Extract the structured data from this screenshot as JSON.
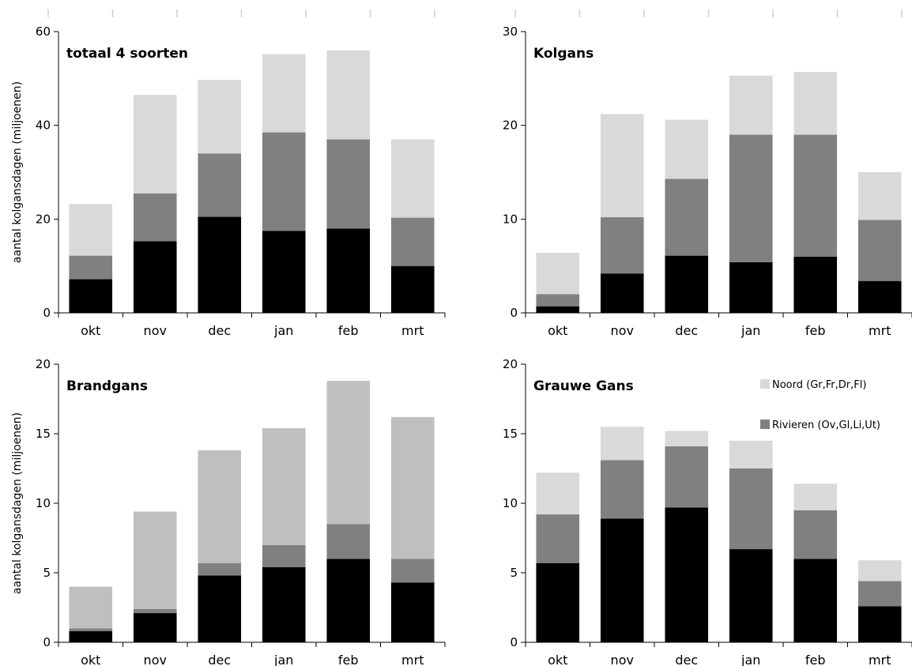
{
  "colors": {
    "Zuid": "#000000",
    "Rivieren": "#808080",
    "Noord": "#d9d9d9",
    "brand_top": "#bfbfbf",
    "axis": "#000000"
  },
  "legend": {
    "noord": "Noord (Gr,Fr,Dr,Fl)",
    "rivieren": "Rivieren (Ov,Gl,Li,Ut)"
  },
  "chart_data": [
    {
      "type": "bar",
      "stacked": true,
      "title": "totaal 4 soorten",
      "ylabel": "aantal kolgansdagen (miljoenen)",
      "categories": [
        "okt",
        "nov",
        "dec",
        "jan",
        "feb",
        "mrt"
      ],
      "ylim": [
        0,
        60
      ],
      "yticks": [
        0,
        20,
        40,
        60
      ],
      "series": [
        {
          "key": "Zuid",
          "values": [
            7.2,
            15.3,
            20.5,
            17.5,
            18.0,
            10.0
          ]
        },
        {
          "key": "Rivieren",
          "values": [
            5.0,
            10.2,
            13.5,
            21.0,
            19.0,
            10.3
          ]
        },
        {
          "key": "Noord",
          "values": [
            11.0,
            21.0,
            15.7,
            16.7,
            19.0,
            16.7
          ]
        }
      ]
    },
    {
      "type": "bar",
      "stacked": true,
      "title": "Kolgans",
      "ylabel": "",
      "categories": [
        "okt",
        "nov",
        "dec",
        "jan",
        "feb",
        "mrt"
      ],
      "ylim": [
        0,
        30
      ],
      "yticks": [
        0,
        10,
        20,
        30
      ],
      "series": [
        {
          "key": "Zuid",
          "values": [
            0.7,
            4.2,
            6.1,
            5.4,
            6.0,
            3.4
          ]
        },
        {
          "key": "Rivieren",
          "values": [
            1.3,
            6.0,
            8.2,
            13.6,
            13.0,
            6.5
          ]
        },
        {
          "key": "Noord",
          "values": [
            4.4,
            11.0,
            6.3,
            6.3,
            6.7,
            5.1
          ]
        }
      ]
    },
    {
      "type": "bar",
      "stacked": true,
      "title": "Brandgans",
      "ylabel": "aantal kolgansdagen (miljoenen)",
      "categories": [
        "okt",
        "nov",
        "dec",
        "jan",
        "feb",
        "mrt"
      ],
      "ylim": [
        0,
        20
      ],
      "yticks": [
        0,
        5,
        10,
        15,
        20
      ],
      "series": [
        {
          "key": "Zuid",
          "values": [
            0.8,
            2.1,
            4.8,
            5.4,
            6.0,
            4.3
          ]
        },
        {
          "key": "Rivieren",
          "values": [
            0.2,
            0.3,
            0.9,
            1.6,
            2.5,
            1.7
          ]
        },
        {
          "key": "brand_top",
          "values": [
            3.0,
            7.0,
            8.1,
            8.4,
            10.3,
            10.2
          ]
        }
      ]
    },
    {
      "type": "bar",
      "stacked": true,
      "title": "Grauwe Gans",
      "ylabel": "",
      "categories": [
        "okt",
        "nov",
        "dec",
        "jan",
        "feb",
        "mrt"
      ],
      "ylim": [
        0,
        20
      ],
      "yticks": [
        0,
        5,
        10,
        15,
        20
      ],
      "series": [
        {
          "key": "Zuid",
          "values": [
            5.7,
            8.9,
            9.7,
            6.7,
            6.0,
            2.6
          ]
        },
        {
          "key": "Rivieren",
          "values": [
            3.5,
            4.2,
            4.4,
            5.8,
            3.5,
            1.8
          ]
        },
        {
          "key": "Noord",
          "values": [
            3.0,
            2.4,
            1.1,
            2.0,
            1.9,
            1.5
          ]
        }
      ]
    }
  ]
}
